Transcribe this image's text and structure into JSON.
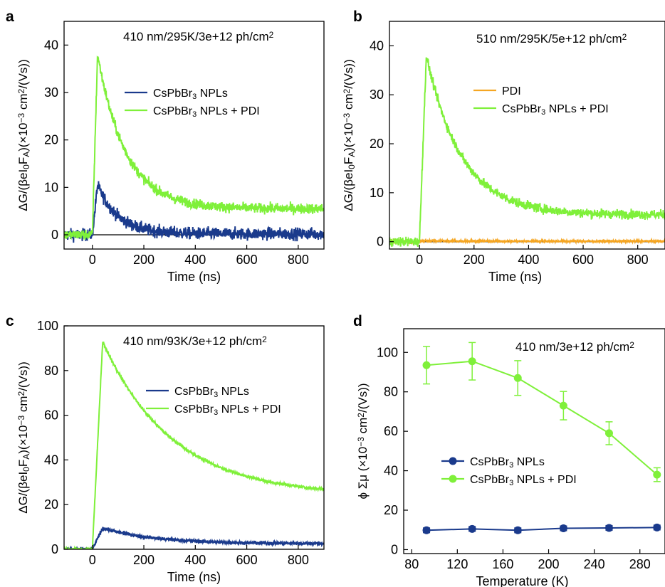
{
  "colors": {
    "blue": "#1a3a8c",
    "green": "#7ff03a",
    "orange": "#f5a623",
    "axis": "#000000"
  },
  "chart_data": [
    {
      "panel": "a",
      "type": "line",
      "annotation": "410 nm/295K/3e+12 ph/cm",
      "annotation_sup": "2",
      "xlabel": "Time (ns)",
      "ylabel_parts": [
        "ΔG/(βeI",
        "0",
        "F",
        "A",
        ")(×10",
        "−3",
        " cm",
        "2",
        "/(Vs))"
      ],
      "xlim": [
        -110,
        900
      ],
      "ylim": [
        -3,
        45
      ],
      "xticks": [
        0,
        200,
        400,
        600,
        800
      ],
      "yticks": [
        0,
        10,
        20,
        30,
        40
      ],
      "legend": "center-right",
      "series": [
        {
          "label": "CsPbBr",
          "sub": "3",
          "suffix": " NPLs",
          "color": "#1a3a8c",
          "rise": 0,
          "peak_t": 20,
          "peak": 10.5,
          "tail": 0.2,
          "tau": 80,
          "noise": 1.2
        },
        {
          "label": "CsPbBr",
          "sub": "3",
          "suffix": " NPLs + PDI",
          "color": "#7ff03a",
          "rise": 0,
          "peak_t": 20,
          "peak": 38,
          "tail": 5.5,
          "tau": 110,
          "noise": 1.0
        }
      ]
    },
    {
      "panel": "b",
      "type": "line",
      "annotation": "510 nm/295K/5e+12 ph/cm",
      "annotation_sup": "2",
      "xlabel": "Time (ns)",
      "ylabel_parts": [
        "ΔG/(βeI",
        "0",
        "F",
        "A",
        ")(×10",
        "−3",
        " cm",
        "2",
        "/(Vs))"
      ],
      "xlim": [
        -110,
        900
      ],
      "ylim": [
        -1.5,
        45
      ],
      "xticks": [
        0,
        200,
        400,
        600,
        800
      ],
      "yticks": [
        0,
        10,
        20,
        30,
        40
      ],
      "legend": "upper-center",
      "series": [
        {
          "label": "PDI",
          "sub": "",
          "suffix": "",
          "color": "#f5a623",
          "rise": 0,
          "peak_t": 20,
          "peak": 0.2,
          "tail": 0.1,
          "tau": 100,
          "noise": 0.2
        },
        {
          "label": "CsPbBr",
          "sub": "3",
          "suffix": " NPLs + PDI",
          "color": "#7ff03a",
          "rise": 0,
          "peak_t": 25,
          "peak": 38,
          "tail": 5.5,
          "tau": 130,
          "noise": 0.9
        }
      ]
    },
    {
      "panel": "c",
      "type": "line",
      "annotation": "410 nm/93K/3e+12 ph/cm",
      "annotation_sup": "2",
      "xlabel": "Time (ns)",
      "ylabel_parts": [
        "ΔG/(βeI",
        "0",
        "F",
        "A",
        ")(×10",
        "−3",
        " cm",
        "2",
        "/(Vs))"
      ],
      "xlim": [
        -110,
        900
      ],
      "ylim": [
        0,
        100
      ],
      "xticks": [
        0,
        200,
        400,
        600,
        800
      ],
      "yticks": [
        0,
        20,
        40,
        60,
        80,
        100
      ],
      "legend": "center-right",
      "series": [
        {
          "label": "CsPbBr",
          "sub": "3",
          "suffix": " NPLs",
          "color": "#1a3a8c",
          "rise": 0,
          "peak_t": 40,
          "peak": 9.5,
          "tail": 2.5,
          "tau": 200,
          "noise": 0.7
        },
        {
          "label": "CsPbBr",
          "sub": "3",
          "suffix": " NPLs + PDI",
          "color": "#7ff03a",
          "rise": 0,
          "peak_t": 40,
          "peak": 93,
          "tail": 24,
          "tau": 270,
          "noise": 0.6
        }
      ]
    },
    {
      "panel": "d",
      "type": "line",
      "annotation": "410 nm/3e+12 ph/cm",
      "annotation_sup": "2",
      "xlabel": "Temperature (K)",
      "ylabel_parts": [
        "ϕ Σμ (×10",
        "−3",
        " cm",
        "2",
        "/(Vs))"
      ],
      "xlim": [
        73,
        302
      ],
      "ylim": [
        -2,
        112
      ],
      "xticks": [
        80,
        120,
        160,
        200,
        240,
        280
      ],
      "yticks": [
        0,
        20,
        40,
        60,
        80,
        100
      ],
      "legend": "center",
      "x": [
        93,
        133,
        173,
        213,
        253,
        295
      ],
      "series": [
        {
          "label": "CsPbBr",
          "sub": "3",
          "suffix": " NPLs",
          "color": "#1a3a8c",
          "values": [
            9.8,
            10.5,
            9.8,
            10.8,
            11.0,
            11.2
          ],
          "errors": [
            1.2,
            1.2,
            1.2,
            1.2,
            1.2,
            1.2
          ]
        },
        {
          "label": "CsPbBr",
          "sub": "3",
          "suffix": " NPLs + PDI",
          "color": "#7ff03a",
          "values": [
            93.5,
            95.5,
            87.0,
            73.0,
            59.0,
            38.0
          ],
          "errors": [
            9.5,
            9.5,
            8.8,
            7.2,
            5.8,
            3.5
          ]
        }
      ]
    }
  ]
}
